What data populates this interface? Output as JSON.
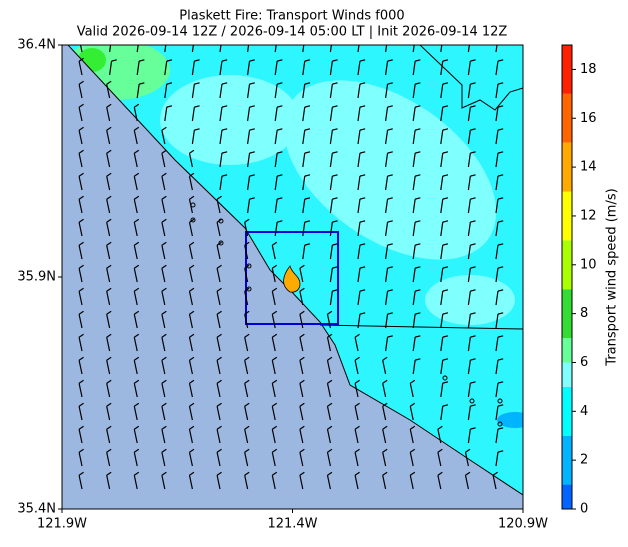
{
  "map": {
    "title": [
      "Plaskett Fire: Transport Winds f000",
      "Valid 2026-09-14 12Z / 2026-09-14 05:00 LT | Init 2026-09-14 12Z"
    ],
    "xlim": [
      -121.9,
      -120.9
    ],
    "xticks": [
      {
        "value": -121.9,
        "label": "121.9W"
      },
      {
        "value": -121.4,
        "label": "121.4W"
      },
      {
        "value": -120.9,
        "label": "120.9W"
      }
    ],
    "ylim": [
      35.4,
      36.4
    ],
    "yticks": [
      {
        "value": 35.4,
        "label": "35.4N"
      },
      {
        "value": 35.9,
        "label": "35.9N"
      },
      {
        "value": 36.4,
        "label": "36.4N"
      }
    ],
    "colorbar": {
      "label": "Transport wind speed (m/s)",
      "lim": [
        0,
        19
      ],
      "ticks": [
        0,
        2,
        4,
        6,
        8,
        10,
        12,
        14,
        16,
        18
      ],
      "bounds": [
        0,
        1,
        3,
        5,
        6,
        7,
        9,
        11,
        13,
        15,
        17,
        19
      ],
      "colors": [
        "#0066ff",
        "#00b4ff",
        "#00ffff",
        "#80ffff",
        "#66ff99",
        "#33dd33",
        "#aaff00",
        "#ffff00",
        "#ffaa00",
        "#ff6600",
        "#ff2200"
      ]
    }
  }
}
